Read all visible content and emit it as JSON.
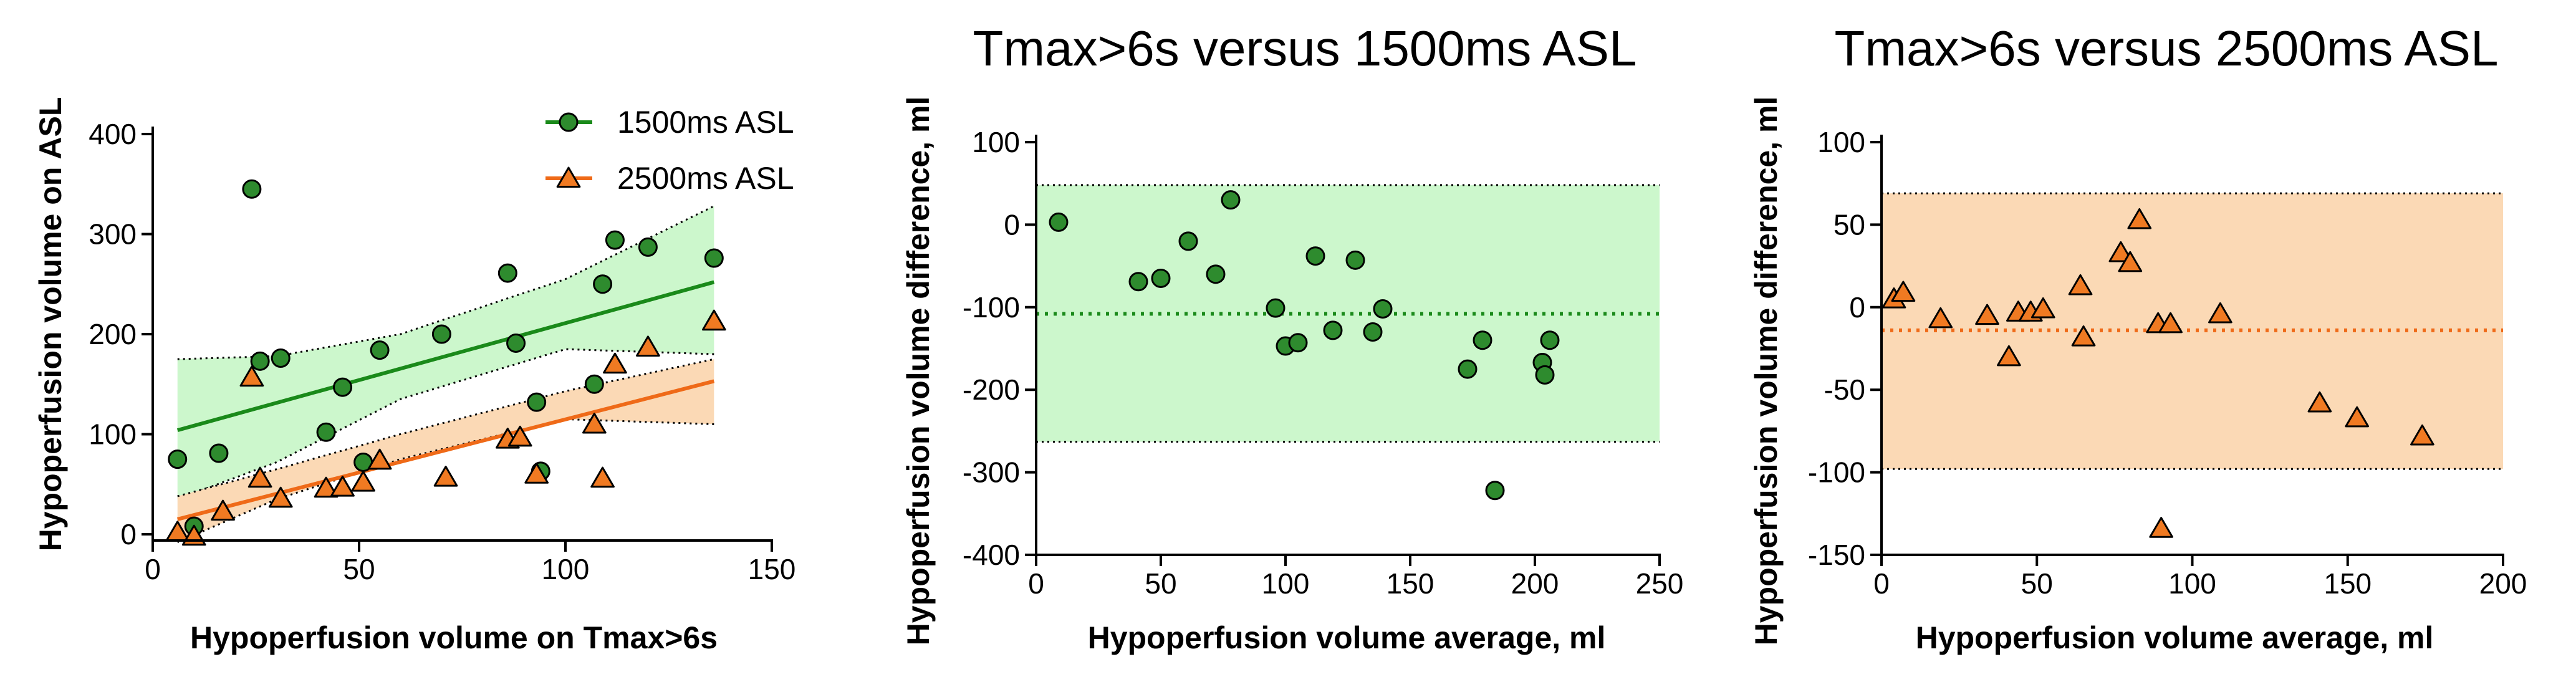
{
  "colors": {
    "green": "#1a8a1a",
    "green_fill": "#2e8b2e",
    "green_band": "#ccf7cc",
    "orange": "#ef6a18",
    "orange_fill": "#f07a22",
    "orange_band": "#fbd9b5"
  },
  "chart_data": [
    {
      "type": "scatter",
      "title": "",
      "xlabel": "Hypoperfusion volume on Tmax>6s",
      "ylabel": "Hypoperfusion volume on ASL",
      "xlim": [
        0,
        150
      ],
      "ylim": [
        -10,
        400
      ],
      "xticks": [
        0,
        50,
        100,
        150
      ],
      "yticks": [
        0,
        100,
        200,
        300,
        400
      ],
      "legend": {
        "position": "top-right",
        "entries": [
          "1500ms ASL",
          "2500ms ASL"
        ]
      },
      "series": [
        {
          "name": "1500ms ASL",
          "marker": "circle",
          "color": "green",
          "points": [
            [
              6,
              75
            ],
            [
              10,
              8
            ],
            [
              16,
              81
            ],
            [
              24,
              345
            ],
            [
              26,
              173
            ],
            [
              31,
              176
            ],
            [
              42,
              102
            ],
            [
              46,
              147
            ],
            [
              51,
              72
            ],
            [
              55,
              184
            ],
            [
              70,
              200
            ],
            [
              86,
              261
            ],
            [
              88,
              191
            ],
            [
              93,
              132
            ],
            [
              94,
              63
            ],
            [
              107,
              150
            ],
            [
              109,
              250
            ],
            [
              112,
              294
            ],
            [
              120,
              287
            ],
            [
              136,
              276
            ]
          ],
          "fit": {
            "x": [
              6,
              136
            ],
            "y": [
              104,
              252
            ]
          },
          "band": {
            "x": [
              6,
              30,
              60,
              100,
              136
            ],
            "upper": [
              175,
              178,
              200,
              255,
              328
            ],
            "lower": [
              35,
              72,
              135,
              185,
              180
            ]
          }
        },
        {
          "name": "2500ms ASL",
          "marker": "triangle",
          "color": "orange",
          "points": [
            [
              6,
              2
            ],
            [
              10,
              -2
            ],
            [
              17,
              23
            ],
            [
              24,
              157
            ],
            [
              26,
              56
            ],
            [
              31,
              36
            ],
            [
              42,
              46
            ],
            [
              46,
              47
            ],
            [
              51,
              52
            ],
            [
              55,
              74
            ],
            [
              71,
              57
            ],
            [
              86,
              95
            ],
            [
              89,
              97
            ],
            [
              93,
              60
            ],
            [
              107,
              110
            ],
            [
              109,
              56
            ],
            [
              112,
              170
            ],
            [
              120,
              187
            ],
            [
              136,
              213
            ]
          ],
          "fit": {
            "x": [
              6,
              136
            ],
            "y": [
              15,
              153
            ]
          },
          "band": {
            "x": [
              6,
              30,
              60,
              100,
              136
            ],
            "upper": [
              38,
              65,
              100,
              143,
              175
            ],
            "lower": [
              -8,
              35,
              75,
              115,
              110
            ]
          }
        }
      ]
    },
    {
      "type": "scatter",
      "title": "Tmax>6s versus 1500ms ASL",
      "xlabel": "Hypoperfusion volume average, ml",
      "ylabel": "Hypoperfusion volume difference, ml",
      "xlim": [
        0,
        250
      ],
      "ylim": [
        -400,
        100
      ],
      "xticks": [
        0,
        50,
        100,
        150,
        200,
        250
      ],
      "yticks": [
        100,
        0,
        -100,
        -200,
        -300,
        -400
      ],
      "mean_line": -108,
      "limits_of_agreement": [
        48,
        -263
      ],
      "marker": "circle",
      "color": "green",
      "points": [
        [
          9,
          3
        ],
        [
          41,
          -69
        ],
        [
          50,
          -65
        ],
        [
          61,
          -20
        ],
        [
          72,
          -60
        ],
        [
          78,
          30
        ],
        [
          96,
          -101
        ],
        [
          100,
          -147
        ],
        [
          105,
          -143
        ],
        [
          112,
          -38
        ],
        [
          119,
          -128
        ],
        [
          128,
          -43
        ],
        [
          135,
          -130
        ],
        [
          139,
          -102
        ],
        [
          173,
          -175
        ],
        [
          179,
          -140
        ],
        [
          184,
          -322
        ],
        [
          203,
          -167
        ],
        [
          204,
          -182
        ],
        [
          206,
          -140
        ]
      ]
    },
    {
      "type": "scatter",
      "title": "Tmax>6s versus 2500ms ASL",
      "xlabel": "Hypoperfusion volume average, ml",
      "ylabel": "Hypoperfusion volume difference, ml",
      "xlim": [
        0,
        200
      ],
      "ylim": [
        -150,
        100
      ],
      "xticks": [
        0,
        50,
        100,
        150,
        200
      ],
      "yticks": [
        100,
        50,
        0,
        -50,
        -100,
        -150
      ],
      "mean_line": -14,
      "limits_of_agreement": [
        69,
        -98
      ],
      "marker": "triangle",
      "color": "orange",
      "points": [
        [
          4,
          5
        ],
        [
          7,
          9
        ],
        [
          19,
          -7
        ],
        [
          34,
          -5
        ],
        [
          41,
          -30
        ],
        [
          44,
          -3
        ],
        [
          48,
          -3
        ],
        [
          52,
          -1
        ],
        [
          64,
          13
        ],
        [
          65,
          -18
        ],
        [
          77,
          33
        ],
        [
          80,
          27
        ],
        [
          83,
          53
        ],
        [
          89,
          -10
        ],
        [
          90,
          -134
        ],
        [
          93,
          -10
        ],
        [
          109,
          -4
        ],
        [
          141,
          -58
        ],
        [
          153,
          -67
        ],
        [
          174,
          -78
        ]
      ]
    }
  ]
}
